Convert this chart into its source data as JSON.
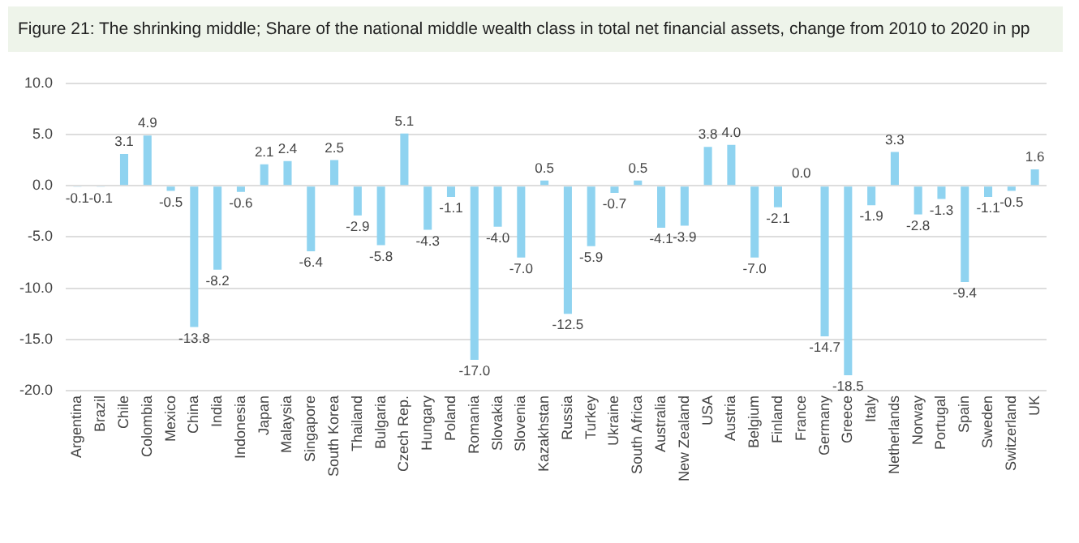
{
  "chart_data": {
    "type": "bar",
    "title": "Figure 21: The shrinking middle; Share of the national middle wealth class in total net financial assets, change from 2010 to 2020 in pp",
    "categories": [
      "Argentina",
      "Brazil",
      "Chile",
      "Colombia",
      "Mexico",
      "China",
      "India",
      "Indonesia",
      "Japan",
      "Malaysia",
      "Singapore",
      "South Korea",
      "Thailand",
      "Bulgaria",
      "Czech Rep.",
      "Hungary",
      "Poland",
      "Romania",
      "Slovakia",
      "Slovenia",
      "Kazakhstan",
      "Russia",
      "Turkey",
      "Ukraine",
      "South Africa",
      "Australia",
      "New Zealand",
      "USA",
      "Austria",
      "Belgium",
      "Finland",
      "France",
      "Germany",
      "Greece",
      "Italy",
      "Netherlands",
      "Norway",
      "Portugal",
      "Spain",
      "Sweden",
      "Switzerland",
      "UK"
    ],
    "values": [
      -0.1,
      -0.1,
      3.1,
      4.9,
      -0.5,
      -13.8,
      -8.2,
      -0.6,
      2.1,
      2.4,
      -6.4,
      2.5,
      -2.9,
      -5.8,
      5.1,
      -4.3,
      -1.1,
      -17.0,
      -4.0,
      -7.0,
      0.5,
      -12.5,
      -5.9,
      -0.7,
      0.5,
      -4.1,
      -3.9,
      3.8,
      4.0,
      -7.0,
      -2.1,
      0.0,
      -14.7,
      -18.5,
      -1.9,
      3.3,
      -2.8,
      -1.3,
      -9.4,
      -1.1,
      -0.5,
      1.6
    ],
    "color": "#8fd3f0",
    "ylim": [
      -20,
      10
    ],
    "yticks": [
      {
        "value": 10,
        "label": "10.0"
      },
      {
        "value": 5,
        "label": "5.0"
      },
      {
        "value": 0,
        "label": "0.0"
      },
      {
        "value": -5,
        "label": "-5.0"
      },
      {
        "value": -10,
        "label": "-10.0"
      },
      {
        "value": -15,
        "label": "-15.0"
      },
      {
        "value": -20,
        "label": "-20.0"
      }
    ],
    "grid": "y",
    "value_labels": [
      "-0.1",
      "-0.1",
      "3.1",
      "4.9",
      "-0.5",
      "-13.8",
      "-8.2",
      "-0.6",
      "2.1",
      "2.4",
      "-6.4",
      "2.5",
      "-2.9",
      "-5.8",
      "5.1",
      "-4.3",
      "-1.1",
      "-17.0",
      "-4.0",
      "-7.0",
      "0.5",
      "-12.5",
      "-5.9",
      "-0.7",
      "0.5",
      "-4.1",
      "-3.9",
      "3.8",
      "4.0",
      "-7.0",
      "-2.1",
      "0.0",
      "-14.7",
      "-18.5",
      "-1.9",
      "3.3",
      "-2.8",
      "-1.3",
      "-9.4",
      "-1.1",
      "-0.5",
      "1.6"
    ]
  }
}
